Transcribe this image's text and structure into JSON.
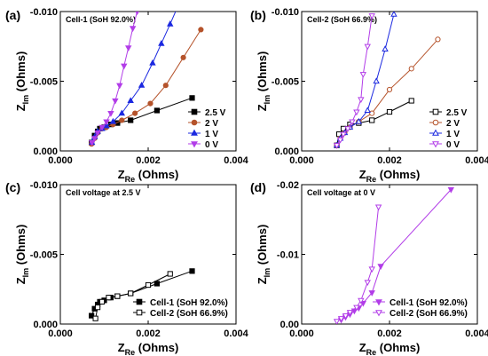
{
  "chart_data": [
    {
      "type": "line",
      "panel_label": "(a)",
      "annotation": "Cell-1 (SoH 92.0%)",
      "title": "",
      "xlabel": {
        "main": "Z",
        "sub": "Re",
        "unit": "(Ohms)"
      },
      "ylabel": {
        "main": "Z",
        "sub": "Im",
        "unit": "(Ohms)"
      },
      "xlim": [
        0,
        0.004
      ],
      "ylim": [
        0,
        -0.01
      ],
      "xticks": [
        0,
        0.002,
        0.004
      ],
      "xtick_labels": [
        "0.000",
        "0.002",
        "0.004"
      ],
      "yticks": [
        0,
        -0.005,
        -0.01
      ],
      "ytick_labels": [
        "0.000",
        "-0.005",
        "-0.010"
      ],
      "legend": {
        "position": "bottom-right"
      },
      "series": [
        {
          "name": "2.5 V",
          "color": "#000000",
          "marker": "square",
          "filled": true,
          "points": [
            [
              0.00071,
              -0.0006
            ],
            [
              0.00078,
              -0.0011
            ],
            [
              0.00085,
              -0.0014
            ],
            [
              0.0009,
              -0.0016
            ],
            [
              0.001,
              -0.0017
            ],
            [
              0.00115,
              -0.0019
            ],
            [
              0.0013,
              -0.002
            ],
            [
              0.0016,
              -0.0022
            ],
            [
              0.0022,
              -0.0029
            ],
            [
              0.003,
              -0.0038
            ]
          ]
        },
        {
          "name": "2 V",
          "color": "#b5532b",
          "marker": "circle",
          "filled": true,
          "points": [
            [
              0.00071,
              -0.0005
            ],
            [
              0.00078,
              -0.0009
            ],
            [
              0.00085,
              -0.0013
            ],
            [
              0.00095,
              -0.0016
            ],
            [
              0.00105,
              -0.0017
            ],
            [
              0.0012,
              -0.0019
            ],
            [
              0.0014,
              -0.0022
            ],
            [
              0.0017,
              -0.0027
            ],
            [
              0.00205,
              -0.0034
            ],
            [
              0.0024,
              -0.0047
            ],
            [
              0.0028,
              -0.0067
            ],
            [
              0.0032,
              -0.0087
            ]
          ]
        },
        {
          "name": "1 V",
          "color": "#1b28e0",
          "marker": "triangle-up",
          "filled": true,
          "points": [
            [
              0.00072,
              -0.0006
            ],
            [
              0.00078,
              -0.001
            ],
            [
              0.00085,
              -0.0014
            ],
            [
              0.00095,
              -0.0016
            ],
            [
              0.00105,
              -0.0018
            ],
            [
              0.0012,
              -0.0021
            ],
            [
              0.0014,
              -0.0027
            ],
            [
              0.0016,
              -0.0036
            ],
            [
              0.00185,
              -0.0047
            ],
            [
              0.0021,
              -0.0063
            ],
            [
              0.0023,
              -0.0077
            ],
            [
              0.0025,
              -0.0091
            ],
            [
              0.00265,
              -0.0102
            ]
          ]
        },
        {
          "name": "0 V",
          "color": "#b23de8",
          "marker": "triangle-down",
          "filled": true,
          "points": [
            [
              0.00072,
              -0.0006
            ],
            [
              0.00078,
              -0.0009
            ],
            [
              0.00085,
              -0.0013
            ],
            [
              0.00095,
              -0.0017
            ],
            [
              0.00105,
              -0.0021
            ],
            [
              0.00115,
              -0.0027
            ],
            [
              0.00125,
              -0.0036
            ],
            [
              0.00135,
              -0.0047
            ],
            [
              0.00145,
              -0.0061
            ],
            [
              0.00155,
              -0.0074
            ],
            [
              0.00165,
              -0.0088
            ],
            [
              0.00175,
              -0.01
            ]
          ]
        }
      ]
    },
    {
      "type": "line",
      "panel_label": "(b)",
      "annotation": "Cell-2 (SoH 66.9%)",
      "title": "",
      "xlabel": {
        "main": "Z",
        "sub": "Re",
        "unit": "(Ohms)"
      },
      "ylabel": {
        "main": "Z",
        "sub": "Im",
        "unit": "(Ohms)"
      },
      "xlim": [
        0,
        0.004
      ],
      "ylim": [
        0,
        -0.01
      ],
      "xticks": [
        0,
        0.002,
        0.004
      ],
      "xtick_labels": [
        "0.000",
        "0.002",
        "0.004"
      ],
      "yticks": [
        0,
        -0.005,
        -0.01
      ],
      "ytick_labels": [
        "0.000",
        "-0.005",
        "-0.010"
      ],
      "legend": {
        "position": "bottom-right"
      },
      "series": [
        {
          "name": "2.5 V",
          "color": "#000000",
          "marker": "square",
          "filled": false,
          "points": [
            [
              0.0008,
              -0.0004
            ],
            [
              0.00085,
              -0.0012
            ],
            [
              0.00095,
              -0.0016
            ],
            [
              0.0011,
              -0.0019
            ],
            [
              0.0013,
              -0.002
            ],
            [
              0.0016,
              -0.0022
            ],
            [
              0.002,
              -0.0028
            ],
            [
              0.0025,
              -0.0036
            ]
          ]
        },
        {
          "name": "2 V",
          "color": "#b5532b",
          "marker": "circle",
          "filled": false,
          "points": [
            [
              0.0008,
              -0.0004
            ],
            [
              0.00088,
              -0.0009
            ],
            [
              0.00098,
              -0.0013
            ],
            [
              0.0011,
              -0.0017
            ],
            [
              0.0013,
              -0.0021
            ],
            [
              0.0016,
              -0.0027
            ],
            [
              0.002,
              -0.0044
            ],
            [
              0.0025,
              -0.0059
            ],
            [
              0.0031,
              -0.008
            ]
          ]
        },
        {
          "name": "1 V",
          "color": "#1b28e0",
          "marker": "triangle-up",
          "filled": false,
          "points": [
            [
              0.0008,
              -0.0004
            ],
            [
              0.00088,
              -0.0009
            ],
            [
              0.00098,
              -0.0013
            ],
            [
              0.0011,
              -0.0017
            ],
            [
              0.0013,
              -0.0021
            ],
            [
              0.0015,
              -0.0029
            ],
            [
              0.0017,
              -0.005
            ],
            [
              0.0019,
              -0.0073
            ],
            [
              0.0021,
              -0.0098
            ]
          ]
        },
        {
          "name": "0 V",
          "color": "#b23de8",
          "marker": "triangle-down",
          "filled": false,
          "points": [
            [
              0.0008,
              -0.0004
            ],
            [
              0.00088,
              -0.0008
            ],
            [
              0.00095,
              -0.0012
            ],
            [
              0.00105,
              -0.0016
            ],
            [
              0.00115,
              -0.0021
            ],
            [
              0.00125,
              -0.0028
            ],
            [
              0.00135,
              -0.0037
            ],
            [
              0.0014,
              -0.0055
            ],
            [
              0.0015,
              -0.0075
            ],
            [
              0.0016,
              -0.0097
            ]
          ]
        }
      ]
    },
    {
      "type": "line",
      "panel_label": "(c)",
      "annotation": "Cell voltage at 2.5 V",
      "title": "",
      "xlabel": {
        "main": "Z",
        "sub": "Re",
        "unit": "(Ohms)"
      },
      "ylabel": {
        "main": "Z",
        "sub": "Im",
        "unit": "(Ohms)"
      },
      "xlim": [
        0,
        0.004
      ],
      "ylim": [
        0,
        -0.01
      ],
      "xticks": [
        0,
        0.002,
        0.004
      ],
      "xtick_labels": [
        "0.000",
        "0.002",
        "0.004"
      ],
      "yticks": [
        0,
        -0.005,
        -0.01
      ],
      "ytick_labels": [
        "0.000",
        "-0.005",
        "-0.010"
      ],
      "legend": {
        "position": "bottom-right"
      },
      "series": [
        {
          "name": "Cell-1 (SoH 92.0%)",
          "color": "#000000",
          "marker": "square",
          "filled": true,
          "points": [
            [
              0.00071,
              -0.0006
            ],
            [
              0.00078,
              -0.0011
            ],
            [
              0.00085,
              -0.0014
            ],
            [
              0.0009,
              -0.0016
            ],
            [
              0.001,
              -0.0017
            ],
            [
              0.00115,
              -0.0019
            ],
            [
              0.0013,
              -0.002
            ],
            [
              0.0016,
              -0.0022
            ],
            [
              0.0022,
              -0.0029
            ],
            [
              0.003,
              -0.0038
            ]
          ]
        },
        {
          "name": "Cell-2 (SoH 66.9%)",
          "color": "#000000",
          "marker": "square",
          "filled": false,
          "points": [
            [
              0.0008,
              -0.0004
            ],
            [
              0.00085,
              -0.0012
            ],
            [
              0.00095,
              -0.0016
            ],
            [
              0.0011,
              -0.0019
            ],
            [
              0.0013,
              -0.002
            ],
            [
              0.0016,
              -0.0022
            ],
            [
              0.002,
              -0.0028
            ],
            [
              0.0025,
              -0.0036
            ]
          ]
        }
      ]
    },
    {
      "type": "line",
      "panel_label": "(d)",
      "annotation": "Cell voltage at 0 V",
      "title": "",
      "xlabel": {
        "main": "Z",
        "sub": "Re",
        "unit": "(Ohms)"
      },
      "ylabel": {
        "main": "Z",
        "sub": "Im",
        "unit": "(Ohms)"
      },
      "xlim": [
        0,
        0.004
      ],
      "ylim": [
        0,
        -0.02
      ],
      "xticks": [
        0,
        0.002,
        0.004
      ],
      "xtick_labels": [
        "0.000",
        "0.002",
        "0.004"
      ],
      "yticks": [
        0,
        -0.01,
        -0.02
      ],
      "ytick_labels": [
        "0.00",
        "-0.01",
        "-0.02"
      ],
      "legend": {
        "position": "bottom-right"
      },
      "series": [
        {
          "name": "Cell-1 (SoH 92.0%)",
          "color": "#b23de8",
          "marker": "triangle-down",
          "filled": true,
          "points": [
            [
              0.0009,
              -0.0006
            ],
            [
              0.001,
              -0.001
            ],
            [
              0.0011,
              -0.0014
            ],
            [
              0.0012,
              -0.0019
            ],
            [
              0.0013,
              -0.0023
            ],
            [
              0.0014,
              -0.003
            ],
            [
              0.0016,
              -0.0045
            ],
            [
              0.0018,
              -0.0083
            ],
            [
              0.0034,
              -0.0193
            ]
          ]
        },
        {
          "name": "Cell-2 (SoH 66.9%)",
          "color": "#b23de8",
          "marker": "triangle-down",
          "filled": false,
          "points": [
            [
              0.0008,
              -0.0004
            ],
            [
              0.0009,
              -0.0008
            ],
            [
              0.001,
              -0.0012
            ],
            [
              0.0011,
              -0.0017
            ],
            [
              0.00125,
              -0.0024
            ],
            [
              0.00135,
              -0.0034
            ],
            [
              0.0015,
              -0.006
            ],
            [
              0.0016,
              -0.0079
            ],
            [
              0.00175,
              -0.0168
            ]
          ]
        }
      ]
    }
  ]
}
